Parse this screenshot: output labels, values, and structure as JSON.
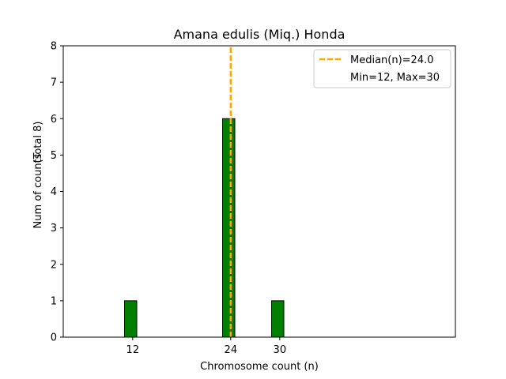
{
  "chart_data": {
    "type": "bar",
    "title": "Amana edulis (Miq.) Honda",
    "xlabel": "Chromosome count (n)",
    "ylabel": "Num of counts",
    "ylabel_total": "(Total 8)",
    "xlim": [
      4,
      52
    ],
    "ylim": [
      0,
      8
    ],
    "yticks": [
      0,
      1,
      2,
      3,
      4,
      5,
      6,
      7,
      8
    ],
    "xticks": [
      12,
      24,
      30
    ],
    "bin_start": 4,
    "bin_width": 1,
    "bin_range_end": 39,
    "bars": [
      {
        "x": 12,
        "count": 1
      },
      {
        "x": 24,
        "count": 6
      },
      {
        "x": 30,
        "count": 1
      }
    ],
    "bar_color": "#008000",
    "median": 24.0,
    "median_color": "#FFA500",
    "legend": {
      "position": "top-right",
      "median_label": "Median(n)=24.0",
      "range_label": "Min=12, Max=30"
    },
    "grid": false
  }
}
